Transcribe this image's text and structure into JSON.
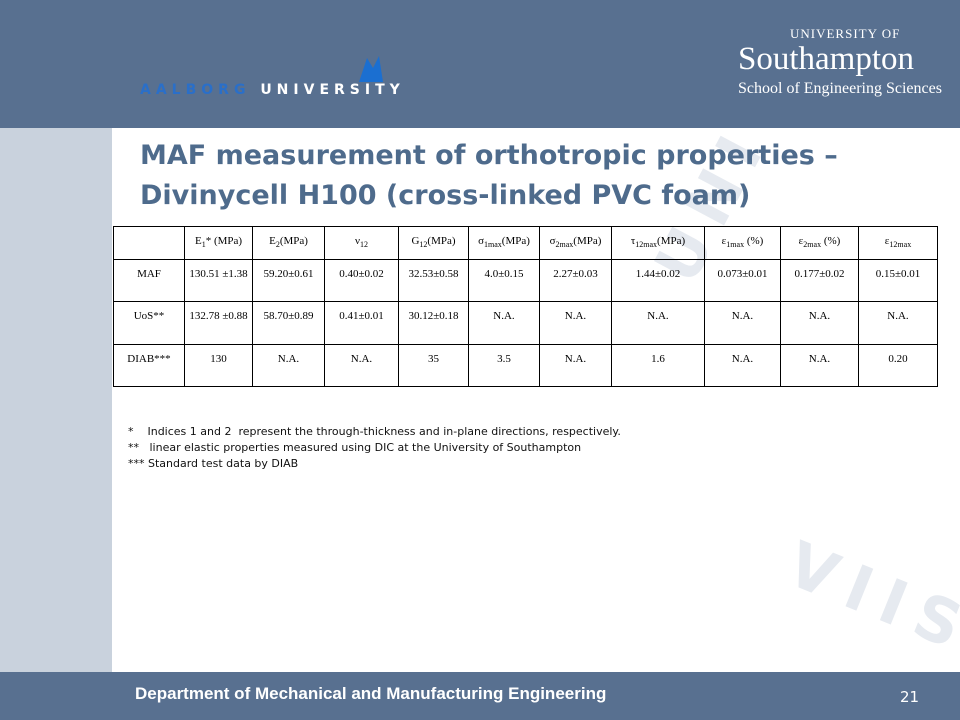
{
  "header": {
    "left_logo": {
      "first": "AALBORG",
      "second": "UNIVERSITY"
    },
    "right_logo": {
      "top": "UNIVERSITY OF",
      "name": "Southampton",
      "school": "School of Engineering Sciences"
    }
  },
  "title": {
    "line1": "MAF measurement of orthotropic properties –",
    "line2": "Divinycell H100 (cross-linked PVC foam)"
  },
  "table": {
    "columns": [
      {
        "base": "E",
        "sub": "1",
        "rest": "* (MPa)"
      },
      {
        "base": "E",
        "sub": "2",
        "rest": "(MPa)"
      },
      {
        "base": "ν",
        "sub": "12"
      },
      {
        "base": "G",
        "sub": "12",
        "rest": "(MPa)"
      },
      {
        "base": "σ",
        "sub": "1max",
        "rest": "(MPa)"
      },
      {
        "base": "σ",
        "sub": "2max",
        "rest": "(MPa)"
      },
      {
        "base": "τ",
        "sub": "12max",
        "rest": "(MPa)"
      },
      {
        "base": "ε",
        "sub": "1max",
        "rest": " (%)"
      },
      {
        "base": "ε",
        "sub": "2max",
        "rest": " (%)"
      },
      {
        "base": "ε",
        "sub": "12max"
      }
    ],
    "rows": [
      {
        "label": "MAF",
        "cells": [
          "130.51 ±1.38",
          "59.20±0.61",
          "0.40±0.02",
          "32.53±0.58",
          "4.0±0.15",
          "2.27±0.03",
          "1.44±0.02",
          "0.073±0.01",
          "0.177±0.02",
          "0.15±0.01"
        ]
      },
      {
        "label": "UoS**",
        "cells": [
          "132.78 ±0.88",
          "58.70±0.89",
          "0.41±0.01",
          "30.12±0.18",
          "N.A.",
          "N.A.",
          "N.A.",
          "N.A.",
          "N.A.",
          "N.A."
        ]
      },
      {
        "label": "DIAB***",
        "cells": [
          "130",
          "N.A.",
          "N.A.",
          "35",
          "3.5",
          "N.A.",
          "1.6",
          "N.A.",
          "N.A.",
          "0.20"
        ]
      }
    ]
  },
  "footnotes": [
    "*    Indices 1 and 2  represent the through-thickness and in-plane directions, respectively.",
    "**   linear elastic properties measured using DIC at the University of Southampton",
    "*** Standard test data by DIAB"
  ],
  "watermark": {
    "arc": "UNIVERSITAS",
    "lower": "VIIS N"
  },
  "footer": {
    "department": "Department of Mechanical and Manufacturing Engineering",
    "page": "21"
  }
}
